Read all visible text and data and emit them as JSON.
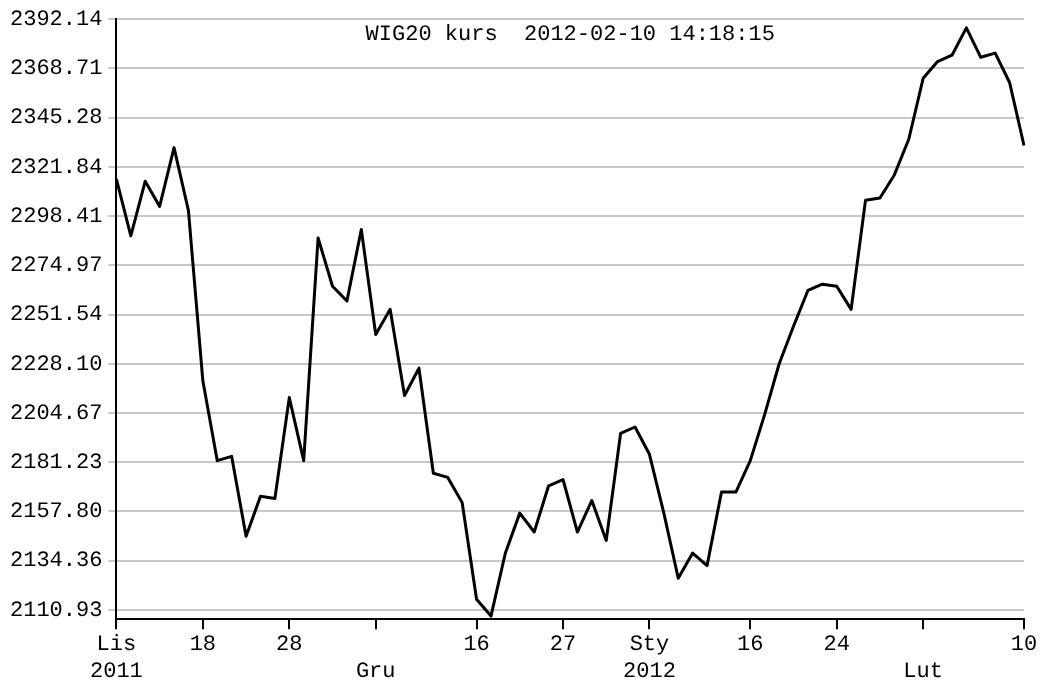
{
  "chart_data": {
    "type": "line",
    "title": "WIG20 kurs  2012-02-10 14:18:15",
    "categories": [
      "Lis\n2011",
      null,
      null,
      null,
      null,
      null,
      "18",
      null,
      null,
      null,
      null,
      null,
      "28",
      null,
      null,
      null,
      null,
      null,
      "\nGru",
      null,
      null,
      null,
      null,
      null,
      null,
      "16",
      null,
      null,
      null,
      null,
      null,
      "27",
      null,
      null,
      null,
      null,
      null,
      "Sty\n2012",
      null,
      null,
      null,
      null,
      null,
      null,
      "16",
      null,
      null,
      null,
      null,
      null,
      "24",
      null,
      null,
      null,
      null,
      null,
      "\nLut",
      null,
      null,
      null,
      null,
      null,
      null,
      "10"
    ],
    "series": [
      {
        "color": "#000000",
        "values": [
          2316,
          2289,
          2315,
          2303,
          2331,
          2301,
          2220,
          2182,
          2184,
          2146,
          2165,
          2164,
          2212,
          2182,
          2288,
          2265,
          2258,
          2292,
          2242,
          2254,
          2213,
          2226,
          2176,
          2174,
          2162,
          2116,
          2108,
          2138,
          2157,
          2148,
          2170,
          2173,
          2148,
          2163,
          2144,
          2195,
          2198,
          2185,
          2157,
          2126,
          2138,
          2132,
          2167,
          2167,
          2182,
          2204,
          2228,
          2246,
          2263,
          2266,
          2265,
          2254,
          2306,
          2307,
          2318,
          2335,
          2364,
          2372,
          2375,
          2388,
          2374,
          2376,
          2362,
          2332
        ]
      }
    ],
    "ylim": [
      2106.5,
      2392.14
    ],
    "yticks": [
      2110.93,
      2134.36,
      {
        "value": 2157.8,
        "label": "2157.80"
      },
      2181.23,
      2204.67,
      {
        "value": 2228.1,
        "label": "2228.10"
      },
      2251.54,
      2274.97,
      2298.41,
      2321.84,
      2345.28,
      2368.71,
      2392.14
    ],
    "grid": "y",
    "marker": "none",
    "line_style": "solid"
  }
}
